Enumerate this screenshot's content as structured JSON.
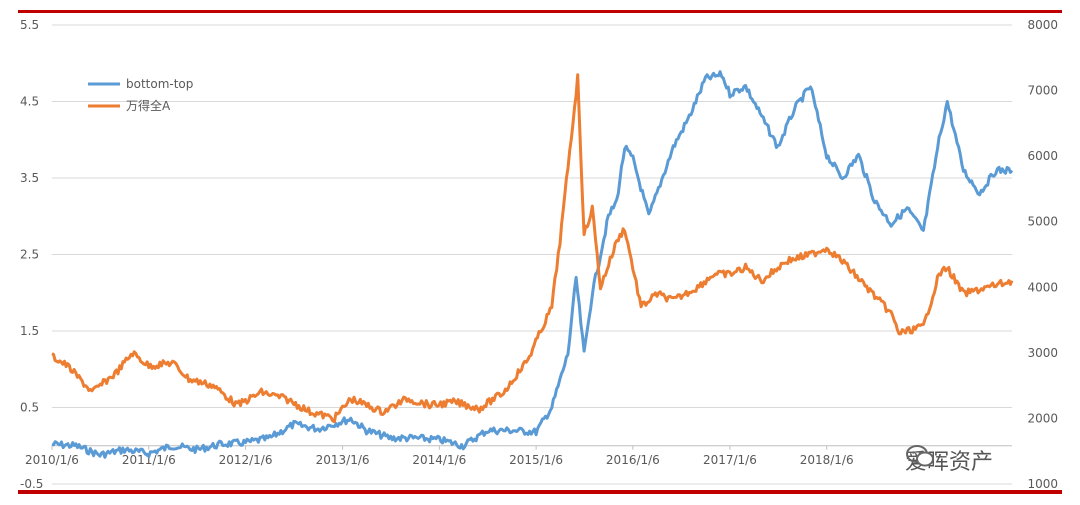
{
  "chart_data": {
    "type": "line",
    "title": "",
    "xlabel": "",
    "ylabel": "",
    "x_tick_labels": [
      "2010/1/6",
      "2011/1/6",
      "2012/1/6",
      "2013/1/6",
      "2014/1/6",
      "2015/1/6",
      "2016/1/6",
      "2017/1/6",
      "2018/1/6"
    ],
    "left_axis": {
      "range": [
        -0.5,
        5.5
      ],
      "tick_labels": [
        "5.5",
        "4.5",
        "3.5",
        "2.5",
        "1.5",
        "0.5",
        "-0.5"
      ],
      "ticks": [
        5.5,
        4.5,
        3.5,
        2.5,
        1.5,
        0.5,
        -0.5
      ]
    },
    "right_axis": {
      "range": [
        1000,
        8000
      ],
      "tick_labels": [
        "8000",
        "7000",
        "6000",
        "5000",
        "4000",
        "3000",
        "2000",
        "1000"
      ],
      "ticks": [
        8000,
        7000,
        6000,
        5000,
        4000,
        3000,
        2000,
        1000
      ]
    },
    "grid": true,
    "legend_position": "top-left",
    "series": [
      {
        "name": "bottom-top",
        "axis": "left",
        "color": "#5b9bd5",
        "points": [
          [
            "2010/1/6",
            0.02
          ],
          [
            "2010/4/6",
            0.0
          ],
          [
            "2010/7/6",
            -0.12
          ],
          [
            "2010/10/6",
            -0.05
          ],
          [
            "2011/1/6",
            -0.1
          ],
          [
            "2011/4/6",
            0.0
          ],
          [
            "2011/7/6",
            -0.05
          ],
          [
            "2011/10/6",
            0.02
          ],
          [
            "2012/1/6",
            0.04
          ],
          [
            "2012/4/6",
            0.1
          ],
          [
            "2012/7/6",
            0.28
          ],
          [
            "2012/10/6",
            0.22
          ],
          [
            "2013/1/6",
            0.32
          ],
          [
            "2013/2/6",
            0.35
          ],
          [
            "2013/4/6",
            0.2
          ],
          [
            "2013/7/6",
            0.1
          ],
          [
            "2013/10/6",
            0.1
          ],
          [
            "2014/1/6",
            0.08
          ],
          [
            "2014/4/6",
            0.0
          ],
          [
            "2014/7/6",
            0.2
          ],
          [
            "2014/10/6",
            0.2
          ],
          [
            "2015/1/6",
            0.18
          ],
          [
            "2015/3/6",
            0.5
          ],
          [
            "2015/5/6",
            1.2
          ],
          [
            "2015/6/6",
            2.2
          ],
          [
            "2015/7/6",
            1.2
          ],
          [
            "2015/8/6",
            2.0
          ],
          [
            "2015/9/6",
            2.5
          ],
          [
            "2015/10/6",
            3.0
          ],
          [
            "2015/11/6",
            3.2
          ],
          [
            "2015/12/6",
            3.9
          ],
          [
            "2016/1/6",
            3.75
          ],
          [
            "2016/3/6",
            3.0
          ],
          [
            "2016/6/6",
            3.9
          ],
          [
            "2016/8/6",
            4.3
          ],
          [
            "2016/10/6",
            4.8
          ],
          [
            "2016/12/6",
            4.85
          ],
          [
            "2017/1/6",
            4.6
          ],
          [
            "2017/3/6",
            4.7
          ],
          [
            "2017/5/6",
            4.3
          ],
          [
            "2017/7/6",
            3.9
          ],
          [
            "2017/9/6",
            4.4
          ],
          [
            "2017/11/6",
            4.7
          ],
          [
            "2018/1/6",
            3.8
          ],
          [
            "2018/3/6",
            3.5
          ],
          [
            "2018/5/6",
            3.8
          ],
          [
            "2018/7/6",
            3.2
          ],
          [
            "2018/9/6",
            2.9
          ],
          [
            "2018/11/6",
            3.1
          ],
          [
            "2019/1/6",
            2.8
          ],
          [
            "2019/3/6",
            4.0
          ],
          [
            "2019/4/6",
            4.5
          ],
          [
            "2019/6/6",
            3.6
          ],
          [
            "2019/8/6",
            3.3
          ],
          [
            "2019/10/6",
            3.6
          ],
          [
            "2019/12/6",
            3.6
          ]
        ]
      },
      {
        "name": "万得全A",
        "axis": "right",
        "color": "#ed7d31",
        "points": [
          [
            "2010/1/6",
            2950
          ],
          [
            "2010/3/6",
            2800
          ],
          [
            "2010/6/6",
            2400
          ],
          [
            "2010/9/6",
            2700
          ],
          [
            "2010/11/6",
            3000
          ],
          [
            "2011/1/6",
            2800
          ],
          [
            "2011/4/6",
            2850
          ],
          [
            "2011/6/6",
            2600
          ],
          [
            "2011/9/6",
            2500
          ],
          [
            "2011/12/6",
            2200
          ],
          [
            "2012/3/6",
            2400
          ],
          [
            "2012/6/6",
            2300
          ],
          [
            "2012/9/6",
            2100
          ],
          [
            "2012/12/6",
            2000
          ],
          [
            "2013/2/6",
            2300
          ],
          [
            "2013/6/6",
            2100
          ],
          [
            "2013/9/6",
            2300
          ],
          [
            "2013/12/6",
            2200
          ],
          [
            "2014/3/6",
            2250
          ],
          [
            "2014/6/6",
            2150
          ],
          [
            "2014/9/6",
            2400
          ],
          [
            "2014/12/6",
            2900
          ],
          [
            "2015/3/6",
            3700
          ],
          [
            "2015/4/6",
            4700
          ],
          [
            "2015/6/12",
            7200
          ],
          [
            "2015/7/6",
            4800
          ],
          [
            "2015/8/6",
            5200
          ],
          [
            "2015/9/6",
            4000
          ],
          [
            "2015/11/6",
            4700
          ],
          [
            "2015/12/6",
            4900
          ],
          [
            "2016/1/6",
            4300
          ],
          [
            "2016/2/6",
            3700
          ],
          [
            "2016/4/6",
            3900
          ],
          [
            "2016/6/6",
            3800
          ],
          [
            "2016/9/6",
            4000
          ],
          [
            "2016/11/6",
            4200
          ],
          [
            "2017/1/6",
            4200
          ],
          [
            "2017/3/6",
            4300
          ],
          [
            "2017/5/6",
            4100
          ],
          [
            "2017/8/6",
            4400
          ],
          [
            "2017/11/6",
            4500
          ],
          [
            "2018/1/6",
            4600
          ],
          [
            "2018/3/6",
            4400
          ],
          [
            "2018/6/6",
            4000
          ],
          [
            "2018/9/6",
            3600
          ],
          [
            "2018/10/6",
            3300
          ],
          [
            "2019/1/6",
            3400
          ],
          [
            "2019/3/6",
            4200
          ],
          [
            "2019/4/6",
            4300
          ],
          [
            "2019/6/6",
            3900
          ],
          [
            "2019/9/6",
            4000
          ],
          [
            "2019/12/6",
            4100
          ]
        ]
      }
    ]
  },
  "watermark": {
    "text": "爱晖资产"
  }
}
